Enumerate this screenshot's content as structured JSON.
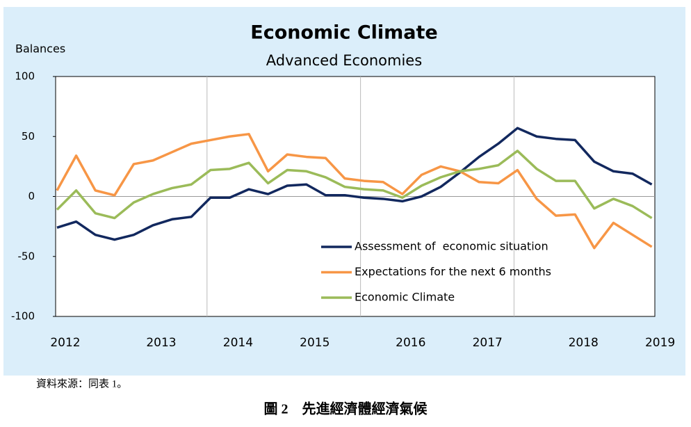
{
  "chart_data": {
    "type": "line",
    "title": "Economic Climate",
    "subtitle": "Advanced Economies",
    "y_label": "Balances",
    "categories": [
      "2012",
      null,
      null,
      null,
      null,
      "2013",
      null,
      null,
      null,
      "2014",
      null,
      null,
      null,
      "2015",
      null,
      null,
      null,
      null,
      "2016",
      null,
      null,
      null,
      "2017",
      null,
      null,
      null,
      null,
      "2018",
      null,
      null,
      null,
      "2019"
    ],
    "series": [
      {
        "name": "Assessment of  economic situation",
        "color": "#12285e",
        "values": [
          -26,
          -21,
          -32,
          -36,
          -32,
          -24,
          -19,
          -17,
          -1,
          -1,
          6,
          2,
          9,
          10,
          1,
          1,
          -1,
          -2,
          -4,
          0,
          8,
          20,
          33,
          44,
          57,
          50,
          48,
          47,
          29,
          21,
          19,
          10
        ]
      },
      {
        "name": "Expectations for the next 6 months",
        "color": "#f79646",
        "values": [
          5,
          34,
          5,
          1,
          27,
          30,
          37,
          44,
          47,
          50,
          52,
          21,
          35,
          33,
          32,
          15,
          13,
          12,
          2,
          18,
          25,
          21,
          12,
          11,
          22,
          -2,
          -16,
          -15,
          -43,
          -22,
          -32,
          -42
        ]
      },
      {
        "name": "Economic Climate",
        "color": "#9bbb59",
        "values": [
          -11,
          5,
          -14,
          -18,
          -5,
          2,
          7,
          10,
          22,
          23,
          28,
          11,
          22,
          21,
          16,
          8,
          6,
          5,
          -1,
          9,
          16,
          21,
          23,
          26,
          38,
          23,
          13,
          13,
          -10,
          -2,
          -8,
          -18
        ]
      }
    ],
    "ylim": [
      -100,
      100
    ],
    "yticks": [
      100,
      50,
      0,
      -50,
      -100
    ],
    "legend": "lower right",
    "source_note": "資料來源：同表 1。",
    "caption": "圖 2　先進經濟體經濟氣候"
  }
}
